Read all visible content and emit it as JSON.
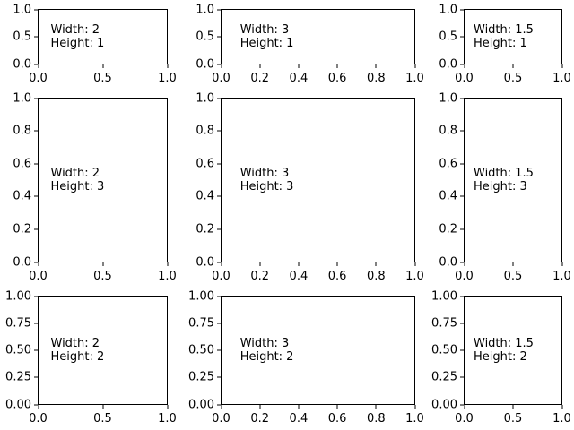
{
  "figure": {
    "background_color": "#ffffff",
    "spine_color": "#000000",
    "text_color": "#000000"
  },
  "chart_data": {
    "type": "subplot-grid",
    "description": "3x3 grid of empty matplotlib axes demonstrating gridspec width_ratios and height_ratios; each axes carries a text annotation of its column width ratio and row height ratio",
    "rows": 3,
    "cols": 3,
    "width_ratios": [
      2,
      3,
      1.5
    ],
    "height_ratios": [
      1,
      3,
      2
    ],
    "grid": false,
    "legend": false,
    "title": "",
    "xlabel": "",
    "ylabel": "",
    "xlim": [
      0,
      1
    ],
    "ylim": [
      0,
      1
    ],
    "annotation_axes_fraction": [
      0.1,
      0.5
    ],
    "subplots": [
      {
        "row": 0,
        "col": 0,
        "annotation": [
          "Width: 2",
          "Height: 1"
        ],
        "xtick_labels": [
          "0.0",
          "0.5",
          "1.0"
        ],
        "ytick_labels": [
          "0.0",
          "0.5",
          "1.0"
        ]
      },
      {
        "row": 0,
        "col": 1,
        "annotation": [
          "Width: 3",
          "Height: 1"
        ],
        "xtick_labels": [
          "0.0",
          "0.2",
          "0.4",
          "0.6",
          "0.8",
          "1.0"
        ],
        "ytick_labels": [
          "0.0",
          "0.5",
          "1.0"
        ]
      },
      {
        "row": 0,
        "col": 2,
        "annotation": [
          "Width: 1.5",
          "Height: 1"
        ],
        "xtick_labels": [
          "0.0",
          "0.5",
          "1.0"
        ],
        "ytick_labels": [
          "0.0",
          "0.5",
          "1.0"
        ]
      },
      {
        "row": 1,
        "col": 0,
        "annotation": [
          "Width: 2",
          "Height: 3"
        ],
        "xtick_labels": [
          "0.0",
          "0.5",
          "1.0"
        ],
        "ytick_labels": [
          "0.0",
          "0.2",
          "0.4",
          "0.6",
          "0.8",
          "1.0"
        ]
      },
      {
        "row": 1,
        "col": 1,
        "annotation": [
          "Width: 3",
          "Height: 3"
        ],
        "xtick_labels": [
          "0.0",
          "0.2",
          "0.4",
          "0.6",
          "0.8",
          "1.0"
        ],
        "ytick_labels": [
          "0.0",
          "0.2",
          "0.4",
          "0.6",
          "0.8",
          "1.0"
        ]
      },
      {
        "row": 1,
        "col": 2,
        "annotation": [
          "Width: 1.5",
          "Height: 3"
        ],
        "xtick_labels": [
          "0.0",
          "0.5",
          "1.0"
        ],
        "ytick_labels": [
          "0.0",
          "0.2",
          "0.4",
          "0.6",
          "0.8",
          "1.0"
        ]
      },
      {
        "row": 2,
        "col": 0,
        "annotation": [
          "Width: 2",
          "Height: 2"
        ],
        "xtick_labels": [
          "0.0",
          "0.5",
          "1.0"
        ],
        "ytick_labels": [
          "0.00",
          "0.25",
          "0.50",
          "0.75",
          "1.00"
        ]
      },
      {
        "row": 2,
        "col": 1,
        "annotation": [
          "Width: 3",
          "Height: 2"
        ],
        "xtick_labels": [
          "0.0",
          "0.2",
          "0.4",
          "0.6",
          "0.8",
          "1.0"
        ],
        "ytick_labels": [
          "0.00",
          "0.25",
          "0.50",
          "0.75",
          "1.00"
        ]
      },
      {
        "row": 2,
        "col": 2,
        "annotation": [
          "Width: 1.5",
          "Height: 2"
        ],
        "xtick_labels": [
          "0.0",
          "0.5",
          "1.0"
        ],
        "ytick_labels": [
          "0.00",
          "0.25",
          "0.50",
          "0.75",
          "1.00"
        ]
      }
    ]
  }
}
